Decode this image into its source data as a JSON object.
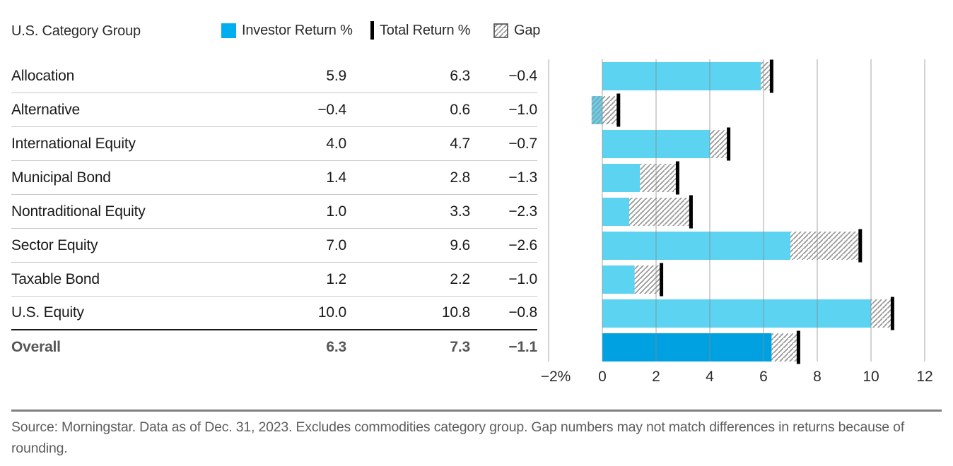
{
  "header": {
    "title": "U.S. Category Group",
    "legend": {
      "investor": "Investor Return %",
      "total": "Total Return %",
      "gap": "Gap"
    }
  },
  "table": {
    "columns": [
      "U.S. Category Group",
      "Investor Return %",
      "Total Return %",
      "Gap"
    ],
    "rows": [
      {
        "label": "Allocation",
        "investor": "5.9",
        "total": "6.3",
        "gap": "−0.4",
        "overall": false
      },
      {
        "label": "Alternative",
        "investor": "−0.4",
        "total": "0.6",
        "gap": "−1.0",
        "overall": false
      },
      {
        "label": "International Equity",
        "investor": "4.0",
        "total": "4.7",
        "gap": "−0.7",
        "overall": false
      },
      {
        "label": "Municipal Bond",
        "investor": "1.4",
        "total": "2.8",
        "gap": "−1.3",
        "overall": false
      },
      {
        "label": "Nontraditional Equity",
        "investor": "1.0",
        "total": "3.3",
        "gap": "−2.3",
        "overall": false
      },
      {
        "label": "Sector Equity",
        "investor": "7.0",
        "total": "9.6",
        "gap": "−2.6",
        "overall": false
      },
      {
        "label": "Taxable Bond",
        "investor": "1.2",
        "total": "2.2",
        "gap": "−1.0",
        "overall": false
      },
      {
        "label": "U.S. Equity",
        "investor": "10.0",
        "total": "10.8",
        "gap": "−0.8",
        "overall": false
      },
      {
        "label": "Overall",
        "investor": "6.3",
        "total": "7.3",
        "gap": "−1.1",
        "overall": true
      }
    ]
  },
  "chart_data": {
    "type": "bar",
    "orientation": "horizontal",
    "title": "",
    "categories": [
      "Allocation",
      "Alternative",
      "International Equity",
      "Municipal Bond",
      "Nontraditional Equity",
      "Sector Equity",
      "Taxable Bond",
      "U.S. Equity",
      "Overall"
    ],
    "series": [
      {
        "name": "Investor Return %",
        "values": [
          5.9,
          -0.4,
          4.0,
          1.4,
          1.0,
          7.0,
          1.2,
          10.0,
          6.3
        ]
      },
      {
        "name": "Total Return %",
        "values": [
          6.3,
          0.6,
          4.7,
          2.8,
          3.3,
          9.6,
          2.2,
          10.8,
          7.3
        ]
      },
      {
        "name": "Gap",
        "values": [
          -0.4,
          -1.0,
          -0.7,
          -1.3,
          -2.3,
          -2.6,
          -1.0,
          -0.8,
          -1.1
        ]
      }
    ],
    "xlim": [
      -2,
      12
    ],
    "xticks": [
      {
        "value": -2,
        "label": "−2%"
      },
      {
        "value": 0,
        "label": "0"
      },
      {
        "value": 2,
        "label": "2"
      },
      {
        "value": 4,
        "label": "4"
      },
      {
        "value": 6,
        "label": "6"
      },
      {
        "value": 8,
        "label": "8"
      },
      {
        "value": 10,
        "label": "10"
      },
      {
        "value": 12,
        "label": "12"
      }
    ],
    "grid": true,
    "legend_position": "top"
  },
  "colors": {
    "investor_bar": "#5CD3F0",
    "overall_bar": "#00A1E0",
    "legend_investor_swatch": "#00AEEF",
    "total_marker": "#000000",
    "hatch_line": "#999999",
    "hatch_border": "#4a4a4a",
    "gridline": "#8a8a8a",
    "axis_label": "#2b2b2b"
  },
  "footer": {
    "text": "Source: Morningstar. Data as of Dec. 31, 2023. Excludes commodities category group. Gap numbers may not match differences in returns because of rounding."
  }
}
